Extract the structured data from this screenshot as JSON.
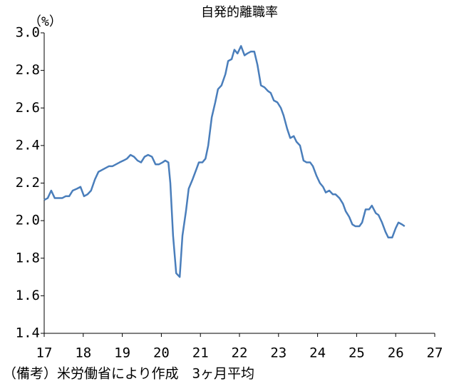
{
  "chart_data": {
    "type": "line",
    "title": "自発的離職率",
    "y_label": "（%）",
    "note": "（備考）米労働省により作成　3ヶ月平均",
    "color": "#4a7ebb",
    "xlim": [
      17,
      27
    ],
    "xticks": [
      17,
      18,
      19,
      20,
      21,
      22,
      23,
      24,
      25,
      26,
      27
    ],
    "ylim": [
      1.4,
      3.0
    ],
    "yticks": [
      1.4,
      1.6,
      1.8,
      {
        "value": 2,
        "label": "2.0"
      },
      2.2,
      2.4,
      2.6,
      2.8,
      {
        "value": 3,
        "label": "3.0"
      }
    ],
    "grid": false,
    "x": [
      17.0,
      17.09,
      17.18,
      17.27,
      17.46,
      17.55,
      17.64,
      17.73,
      17.84,
      17.93,
      18.02,
      18.11,
      18.2,
      18.3,
      18.39,
      18.57,
      18.66,
      18.75,
      18.84,
      18.93,
      19.03,
      19.12,
      19.21,
      19.3,
      19.39,
      19.48,
      19.57,
      19.66,
      19.76,
      19.85,
      19.94,
      20.03,
      20.1,
      20.18,
      20.23,
      20.3,
      20.38,
      20.47,
      20.54,
      20.63,
      20.7,
      20.8,
      20.89,
      20.96,
      21.05,
      21.13,
      21.2,
      21.29,
      21.38,
      21.45,
      21.54,
      21.64,
      21.71,
      21.8,
      21.87,
      21.95,
      22.04,
      22.13,
      22.2,
      22.29,
      22.38,
      22.46,
      22.55,
      22.64,
      22.73,
      22.8,
      22.88,
      22.97,
      23.06,
      23.13,
      23.22,
      23.3,
      23.39,
      23.46,
      23.55,
      23.64,
      23.72,
      23.81,
      23.88,
      23.97,
      24.06,
      24.14,
      24.21,
      24.3,
      24.39,
      24.46,
      24.56,
      24.65,
      24.72,
      24.81,
      24.89,
      24.97,
      25.07,
      25.14,
      25.23,
      25.32,
      25.39,
      25.49,
      25.56,
      25.65,
      25.74,
      25.81,
      25.91,
      26.0,
      26.07,
      26.16,
      26.23
    ],
    "values": [
      2.11,
      2.12,
      2.16,
      2.12,
      2.12,
      2.13,
      2.13,
      2.16,
      2.17,
      2.18,
      2.13,
      2.14,
      2.16,
      2.22,
      2.26,
      2.28,
      2.29,
      2.29,
      2.3,
      2.31,
      2.32,
      2.33,
      2.35,
      2.34,
      2.32,
      2.31,
      2.34,
      2.35,
      2.34,
      2.3,
      2.3,
      2.31,
      2.32,
      2.31,
      2.2,
      1.92,
      1.72,
      1.7,
      1.92,
      2.05,
      2.17,
      2.22,
      2.27,
      2.31,
      2.31,
      2.33,
      2.4,
      2.55,
      2.63,
      2.7,
      2.72,
      2.78,
      2.85,
      2.86,
      2.91,
      2.89,
      2.93,
      2.88,
      2.89,
      2.9,
      2.9,
      2.83,
      2.72,
      2.71,
      2.69,
      2.68,
      2.64,
      2.63,
      2.6,
      2.56,
      2.49,
      2.44,
      2.45,
      2.42,
      2.4,
      2.32,
      2.31,
      2.31,
      2.29,
      2.24,
      2.2,
      2.18,
      2.15,
      2.16,
      2.14,
      2.14,
      2.12,
      2.09,
      2.05,
      2.02,
      1.98,
      1.97,
      1.97,
      1.99,
      2.06,
      2.06,
      2.08,
      2.04,
      2.03,
      1.99,
      1.94,
      1.91,
      1.91,
      1.96,
      1.99,
      1.98,
      1.97
    ]
  }
}
